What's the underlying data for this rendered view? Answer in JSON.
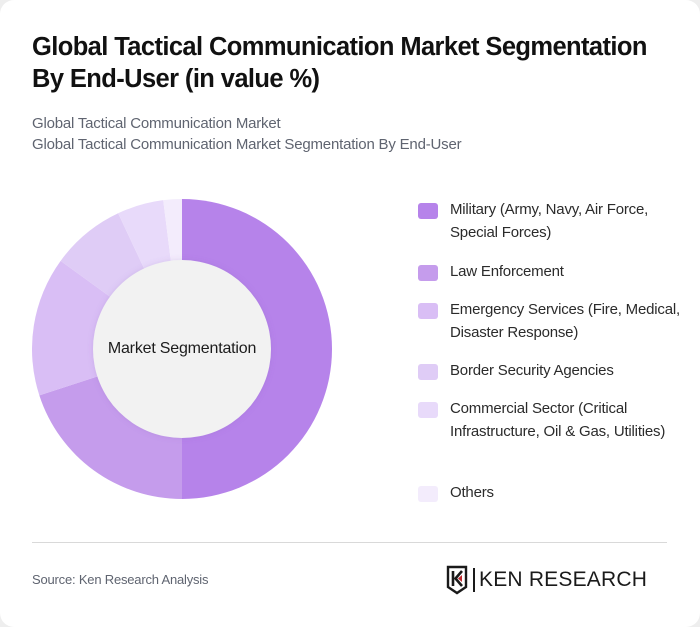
{
  "header": {
    "title_line1": "Global Tactical Communication Market Segmentation",
    "title_line2": "By End-User (in value %)",
    "subtitle_line1": "Global Tactical Communication Market",
    "subtitle_line2": "Global Tactical Communication Market Segmentation By End-User"
  },
  "donut": {
    "center_label": "Market Segmentation",
    "center_fill": "#f2f2f2"
  },
  "legend": {
    "items": [
      {
        "label": "Military (Army, Navy, Air Force, Special Forces)",
        "color": "#b683ea"
      },
      {
        "label": "Law Enforcement",
        "color": "#c59cec"
      },
      {
        "label": "Emergency Services (Fire, Medical, Disaster Response)",
        "color": "#d9bef5"
      },
      {
        "label": "Border Security Agencies",
        "color": "#dfccf6"
      },
      {
        "label": "Commercial Sector (Critical Infrastructure, Oil & Gas, Utilities)",
        "color": "#e8dafa"
      },
      {
        "label": "Others",
        "color": "#f3ecfc"
      }
    ]
  },
  "footer": {
    "source": "Source: Ken Research Analysis",
    "logo_text": "KEN RESEARCH"
  },
  "chart_data": {
    "type": "pie",
    "variant": "donut",
    "title": "Global Tactical Communication Market Segmentation By End-User (in value %)",
    "subtitle": "Global Tactical Communication Market Segmentation By End-User",
    "center_label": "Market Segmentation",
    "categories": [
      "Military (Army, Navy, Air Force, Special Forces)",
      "Law Enforcement",
      "Emergency Services (Fire, Medical, Disaster Response)",
      "Border Security Agencies",
      "Commercial Sector (Critical Infrastructure, Oil & Gas, Utilities)",
      "Others"
    ],
    "values": [
      50,
      20,
      15,
      8,
      5,
      2
    ],
    "unit": "%",
    "colors": [
      "#b683ea",
      "#c59cec",
      "#d9bef5",
      "#dfccf6",
      "#e8dafa",
      "#f3ecfc"
    ],
    "start_angle": "12 o'clock, clockwise",
    "legend_position": "right",
    "data_labels": false
  }
}
